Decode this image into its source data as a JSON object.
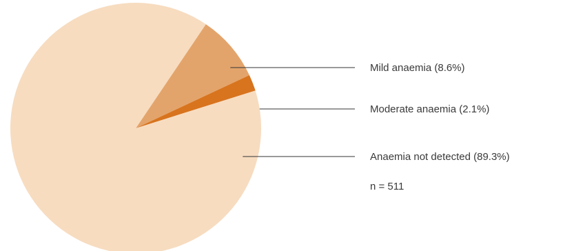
{
  "chart_data": {
    "type": "pie",
    "title": "",
    "slices": [
      {
        "label": "Mild anaemia (8.6%)",
        "value": 8.6,
        "color": "#e3a46b"
      },
      {
        "label": "Moderate anaemia (2.1%)",
        "value": 2.1,
        "color": "#d8741e"
      },
      {
        "label": "Anaemia not detected (89.3%)",
        "value": 89.3,
        "color": "#f7dcc0"
      }
    ],
    "start_angle_deg": 56,
    "direction": "clockwise",
    "leader_line_color": "#333333",
    "note": "n = 511"
  }
}
